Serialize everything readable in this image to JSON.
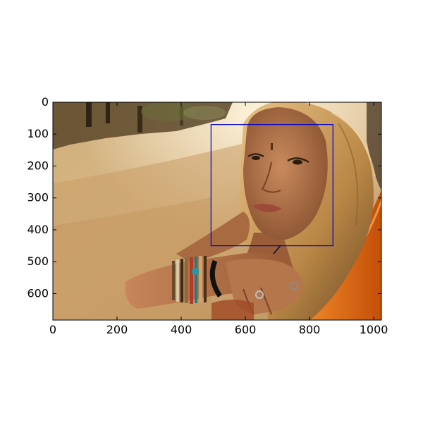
{
  "figure": {
    "background": "#ffffff",
    "image_description_colors": {
      "sky": "#f7efd5",
      "dust": "#d9b98a",
      "road": "#c89f6a",
      "shadow_trees": "#4a3b22",
      "skin": "#b8784f",
      "hair": "#b88a4c",
      "car": "#e46a14"
    },
    "x_axis": {
      "ticks": [
        0,
        200,
        400,
        600,
        800,
        1000
      ],
      "range": [
        0,
        1024
      ]
    },
    "y_axis": {
      "ticks": [
        0,
        100,
        200,
        300,
        400,
        500,
        600
      ],
      "range": [
        683,
        0
      ]
    },
    "box": {
      "x0": 493,
      "y0": 70,
      "x1": 873,
      "y1": 450,
      "color": "#0000cc"
    }
  }
}
